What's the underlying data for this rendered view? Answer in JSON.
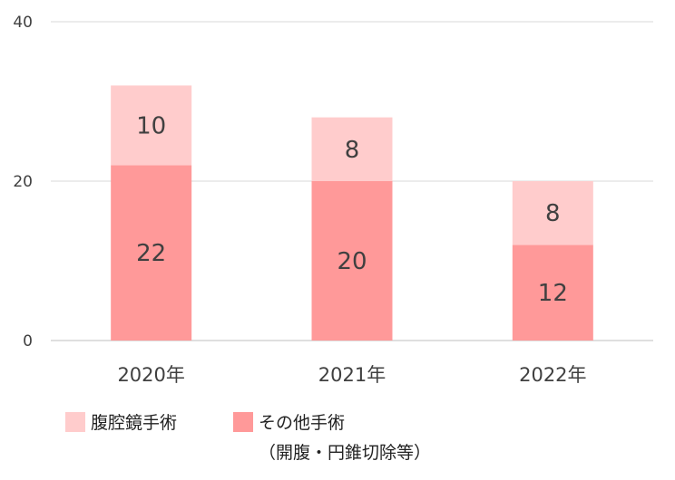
{
  "chart_data": {
    "type": "bar",
    "stacked": true,
    "categories": [
      "2020年",
      "2021年",
      "2022年"
    ],
    "series": [
      {
        "name": "その他手術",
        "values": [
          22,
          20,
          12
        ],
        "color": "#ff9999"
      },
      {
        "name": "腹腔鏡手術",
        "values": [
          10,
          8,
          8
        ],
        "color": "#ffcccc"
      }
    ],
    "legend_note": "（開腹・円錐切除等）",
    "y_ticks": [
      "0",
      "20",
      "40"
    ],
    "ylim": [
      0,
      40
    ],
    "grid": true,
    "legend_position": "bottom-left",
    "title": "",
    "xlabel": "",
    "ylabel": ""
  }
}
